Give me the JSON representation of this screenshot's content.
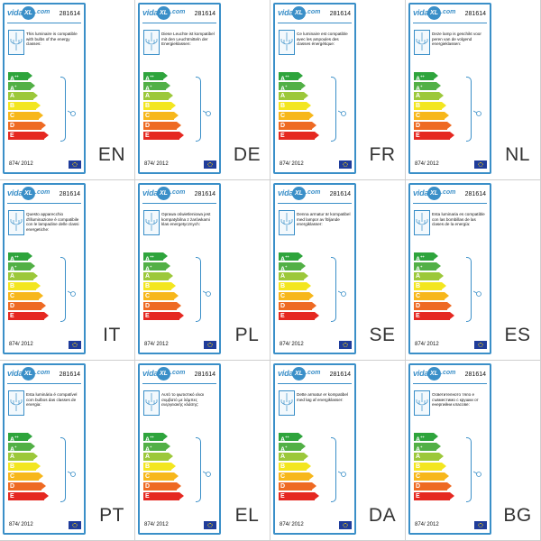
{
  "logo": {
    "text": "vida",
    "mark": "XL",
    "suffix": ".com"
  },
  "product_code": "281614",
  "regulation": "874/ 2012",
  "energy_classes": [
    {
      "letter": "A",
      "sup": "++",
      "color": "#2ea43c"
    },
    {
      "letter": "A",
      "sup": "+",
      "color": "#52b046"
    },
    {
      "letter": "A",
      "sup": "",
      "color": "#9cc83a"
    },
    {
      "letter": "B",
      "sup": "",
      "color": "#f3e620"
    },
    {
      "letter": "C",
      "sup": "",
      "color": "#f7b71b"
    },
    {
      "letter": "D",
      "sup": "",
      "color": "#ee6a23"
    },
    {
      "letter": "E",
      "sup": "",
      "color": "#e52821"
    }
  ],
  "labels": [
    {
      "lang": "EN",
      "text": "This luminaire is compatible with bulbs of the energy classes:"
    },
    {
      "lang": "DE",
      "text": "Diese Leuchte ist kompatibel mit den Leuchtmitteln der Energieklassen:"
    },
    {
      "lang": "FR",
      "text": "Ce luminaire est compatible avec les ampoules des classes énergétique:"
    },
    {
      "lang": "NL",
      "text": "Deze lamp is geschikt voor peren van de volgend energieklassen:"
    },
    {
      "lang": "IT",
      "text": "Questo apparecchio d'illuminazione è compatibile con le lampadine delle classi energetiche:"
    },
    {
      "lang": "PL",
      "text": "Oprawa oświetleniowa jest kompatybilna z żarówkami klas energetycznych:"
    },
    {
      "lang": "SE",
      "text": "Denna armatur är kompatibel med lampor av följande energiklasser:"
    },
    {
      "lang": "ES",
      "text": "Esta luminaria es compatible con las bombillas de las clases de la energía:"
    },
    {
      "lang": "PT",
      "text": "Esta luminária é compatível com bulbos das classes de energia:"
    },
    {
      "lang": "EL",
      "text": "Αυτό το φωτιστικό είναι συμβατό με λάμπες ενεργειακής κλάσης:"
    },
    {
      "lang": "DA",
      "text": "Dette armatur er kompatibel med løg af energiklasser:"
    },
    {
      "lang": "BG",
      "text": "Осветителното тяло е съвместимо с крушки от енергийни класове:"
    }
  ]
}
